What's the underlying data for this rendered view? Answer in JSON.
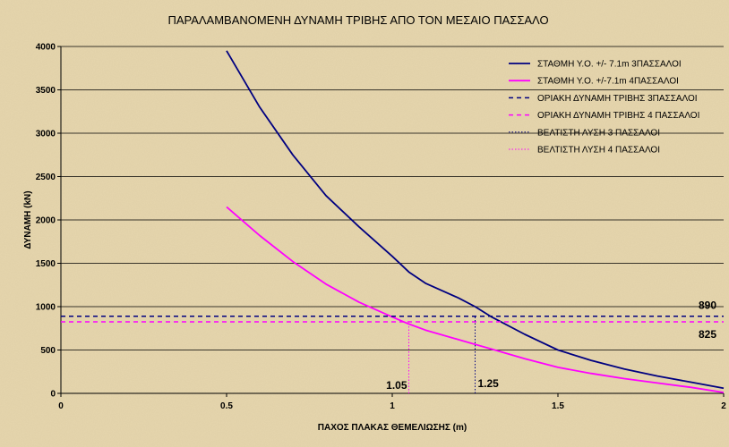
{
  "chart_data": {
    "type": "line",
    "title": "ΠΑΡΑΛΑΜΒΑΝΟΜΕΝΗ ΔΥΝΑΜΗ ΤΡΙΒΗΣ ΑΠΟ ΤΟΝ ΜΕΣΑΙΟ ΠΑΣΣΑΛΟ",
    "xlabel": "ΠΑΧΟΣ ΠΛΑΚΑΣ ΘΕΜΕΛΙΩΣΗΣ (m)",
    "ylabel": "ΔΥΝΑΜΗ (kN)",
    "xlim": [
      0,
      2
    ],
    "ylim": [
      0,
      4000
    ],
    "x_ticks": [
      "0",
      "0.5",
      "1",
      "1.5",
      "2"
    ],
    "y_ticks": [
      "0",
      "500",
      "1000",
      "1500",
      "2000",
      "2500",
      "3000",
      "3500",
      "4000"
    ],
    "grid": "horizontal major gridlines",
    "legend_position": "top-right",
    "series": [
      {
        "name": "ΣΤΑΘΜΗ Υ.Ο. +/- 7.1m 3ΠΑΣΣΑΛΟΙ",
        "color": "#000080",
        "style": "solid",
        "x": [
          0.5,
          0.6,
          0.7,
          0.8,
          0.9,
          1.0,
          1.05,
          1.1,
          1.2,
          1.25,
          1.3,
          1.4,
          1.5,
          1.6,
          1.7,
          1.8,
          1.9,
          2.0
        ],
        "y": [
          3950,
          3300,
          2750,
          2280,
          1920,
          1580,
          1400,
          1270,
          1100,
          1000,
          880,
          680,
          500,
          380,
          280,
          200,
          130,
          60
        ]
      },
      {
        "name": "ΣΤΑΘΜΗ Υ.Ο. +/-7.1m 4ΠΑΣΣΑΛΟΙ",
        "color": "#ff00ff",
        "style": "solid",
        "x": [
          0.5,
          0.6,
          0.7,
          0.8,
          0.9,
          1.0,
          1.05,
          1.1,
          1.2,
          1.3,
          1.4,
          1.5,
          1.6,
          1.7,
          1.8,
          1.9,
          2.0
        ],
        "y": [
          2150,
          1820,
          1520,
          1260,
          1050,
          880,
          800,
          730,
          620,
          510,
          400,
          300,
          230,
          170,
          120,
          70,
          10
        ]
      },
      {
        "name": "ΟΡΙΑΚΗ ΔΥΝΑΜΗ ΤΡΙΒΗΣ 3ΠΑΣΣΑΛΟΙ",
        "color": "#000080",
        "style": "dashed",
        "x": [
          0,
          2
        ],
        "y": [
          890,
          890
        ]
      },
      {
        "name": "ΟΡΙΑΚΗ ΔΥΝΑΜΗ ΤΡΙΒΗΣ 4 ΠΑΣΣΑΛΟΙ",
        "color": "#ff00ff",
        "style": "dashed",
        "x": [
          0,
          2
        ],
        "y": [
          825,
          825
        ]
      },
      {
        "name": "ΒΕΛΤΙΣΤΗ ΛΥΣΗ 3 ΠΑΣΣΑΛΟΙ",
        "color": "#000080",
        "style": "dotted",
        "x": [
          1.25,
          1.25
        ],
        "y": [
          0,
          890
        ]
      },
      {
        "name": "ΒΕΛΤΙΣΤΗ ΛΥΣΗ 4 ΠΑΣΣΑΛΟΙ",
        "color": "#ff00ff",
        "style": "dotted",
        "x": [
          1.05,
          1.05
        ],
        "y": [
          0,
          825
        ]
      }
    ],
    "annotations": [
      {
        "text": "890",
        "x": 2.0,
        "y": 890
      },
      {
        "text": "825",
        "x": 2.0,
        "y": 825
      },
      {
        "text": "1.05",
        "x": 1.05,
        "y": 0
      },
      {
        "text": "1.25",
        "x": 1.25,
        "y": 0
      }
    ]
  }
}
